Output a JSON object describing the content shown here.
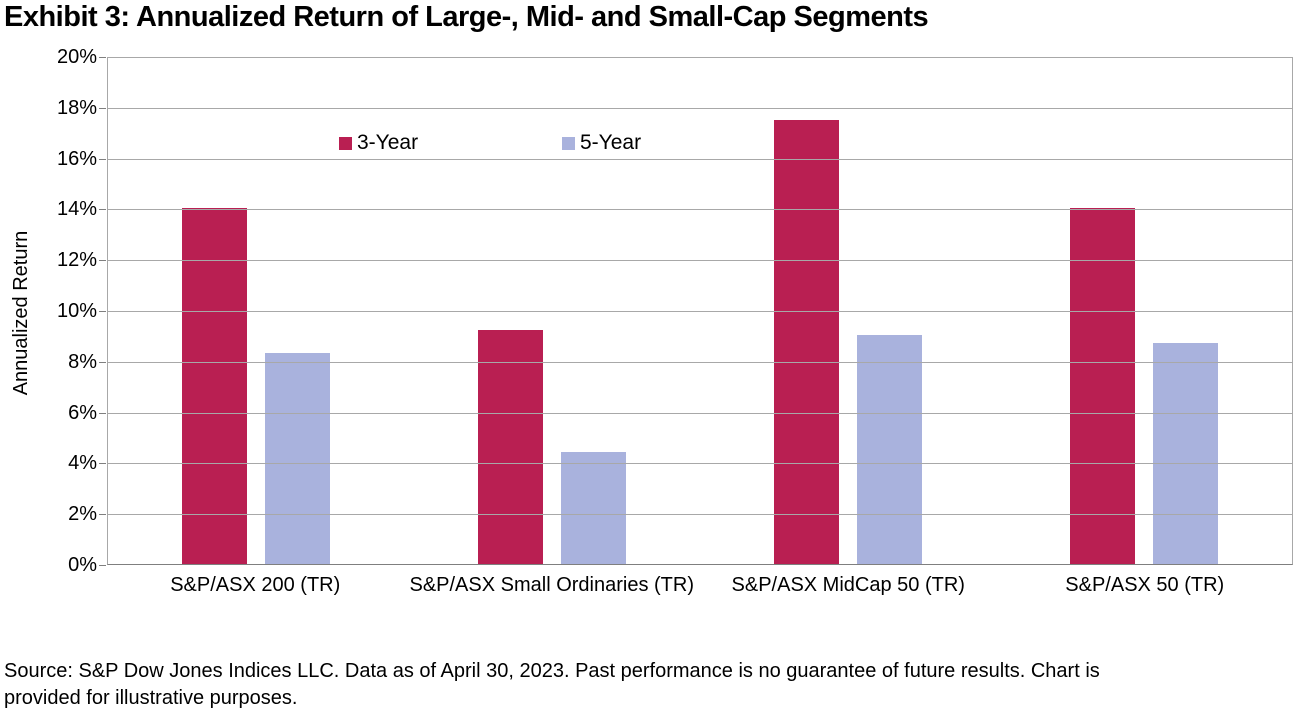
{
  "title": "Exhibit 3: Annualized Return of Large-, Mid- and Small-Cap Segments",
  "source_note": {
    "line1": "Source: S&P Dow Jones Indices LLC. Data as of April 30, 2023. Past performance is no guarantee of future results. Chart is",
    "line2": "provided for illustrative purposes."
  },
  "chart_data": {
    "type": "bar",
    "title": "Exhibit 3: Annualized Return of Large-, Mid- and Small-Cap Segments",
    "categories": [
      "S&P/ASX 200 (TR)",
      "S&P/ASX Small Ordinaries (TR)",
      "S&P/ASX MidCap 50 (TR)",
      "S&P/ASX 50 (TR)"
    ],
    "series": [
      {
        "name": "3-Year",
        "color": "#B91F52",
        "values": [
          14.0,
          9.2,
          17.5,
          14.0
        ]
      },
      {
        "name": "5-Year",
        "color": "#A9B2DD",
        "values": [
          8.3,
          4.4,
          9.0,
          8.7
        ]
      }
    ],
    "xlabel": "",
    "ylabel": "Annualized Return",
    "ylim": [
      0,
      20
    ],
    "ytick_step": 2,
    "ytick_suffix": "%",
    "grid": true,
    "legend_position": "inside-top"
  },
  "colors": {
    "series_3_year": "#B91F52",
    "series_5_year": "#A9B2DD",
    "gridline": "#A8A8A8",
    "axis_line": "#7F7F7F",
    "text": "#000000"
  }
}
